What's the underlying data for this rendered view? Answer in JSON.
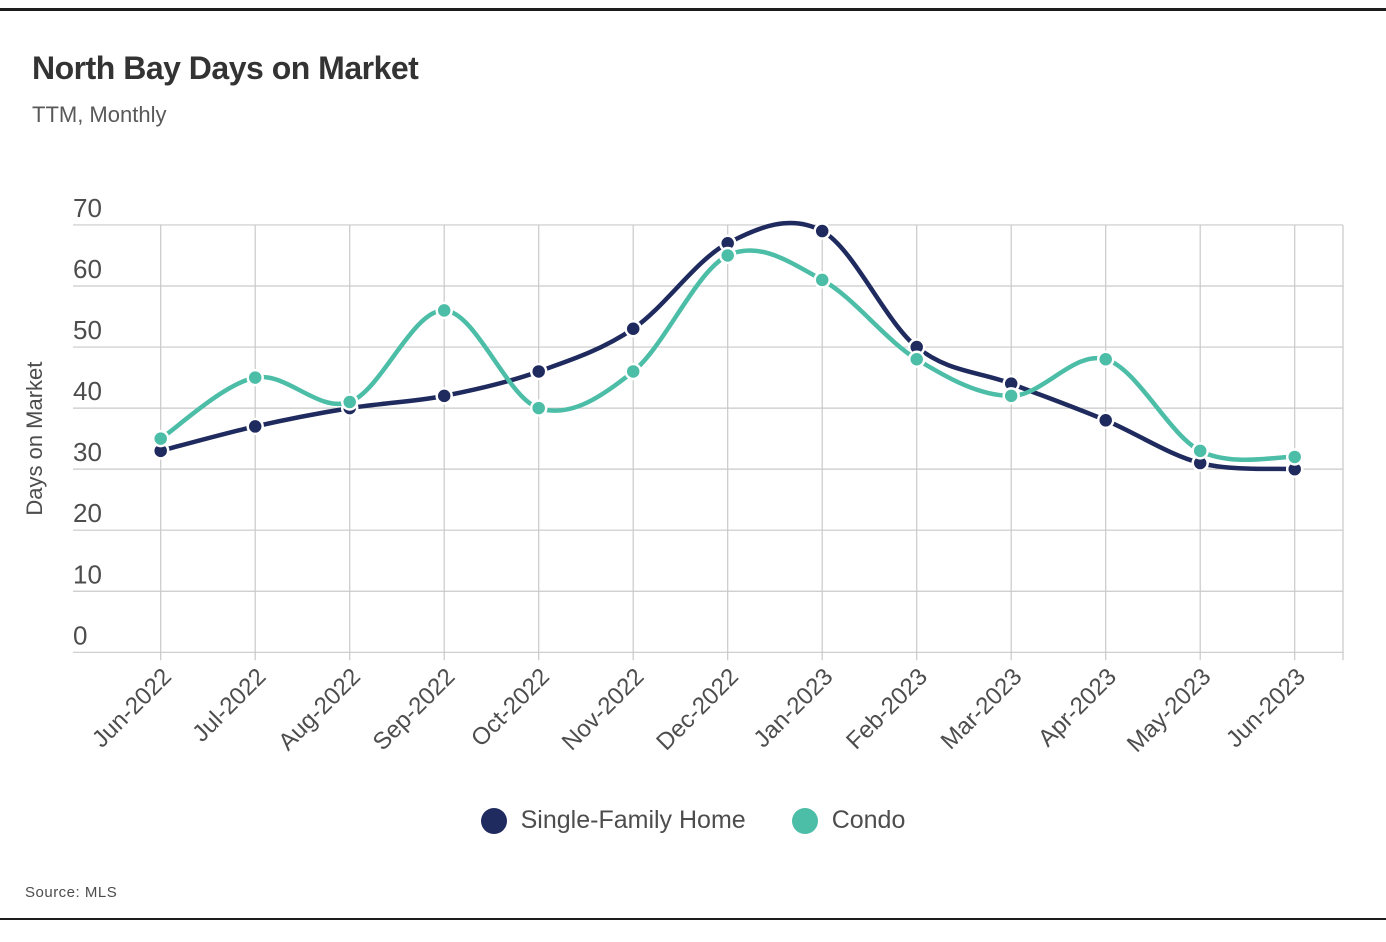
{
  "page": {
    "title": "North Bay Days on Market",
    "subtitle": "TTM, Monthly",
    "source": "Source: MLS"
  },
  "chart_data": {
    "type": "line",
    "title": "North Bay Days on Market",
    "subtitle": "TTM, Monthly",
    "xlabel": "",
    "ylabel": "Days on Market",
    "ylim": [
      0,
      70
    ],
    "ytick_step": 10,
    "yticks": [
      0,
      10,
      20,
      30,
      40,
      50,
      60,
      70
    ],
    "grid": true,
    "legend_position": "bottom",
    "marker": "circle",
    "curve": "smooth",
    "categories": [
      "Jun-2022",
      "Jul-2022",
      "Aug-2022",
      "Sep-2022",
      "Oct-2022",
      "Nov-2022",
      "Dec-2022",
      "Jan-2023",
      "Feb-2023",
      "Mar-2023",
      "Apr-2023",
      "May-2023",
      "Jun-2023"
    ],
    "series": [
      {
        "name": "Single-Family Home",
        "color": "#1f2a5e",
        "values": [
          33,
          37,
          40,
          42,
          46,
          53,
          67,
          69,
          50,
          44,
          38,
          31,
          30
        ]
      },
      {
        "name": "Condo",
        "color": "#4cbda6",
        "values": [
          35,
          45,
          41,
          56,
          40,
          46,
          65,
          61,
          48,
          42,
          48,
          33,
          32
        ]
      }
    ],
    "source": "Source: MLS"
  },
  "style": {
    "grid_color": "#c9c9c9",
    "tick_label_color": "#4d4d4d",
    "axis_title_color": "#4d4d4d",
    "title_color": "#333333",
    "rule_color": "#1d1d1d",
    "marker_halo": "#ffffff"
  }
}
